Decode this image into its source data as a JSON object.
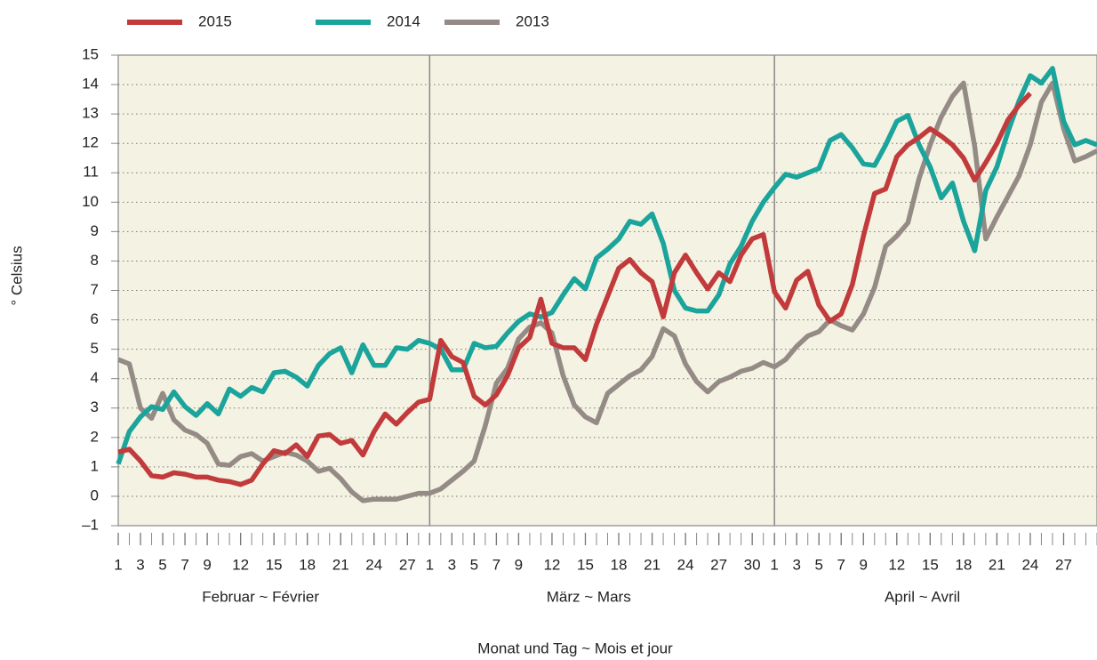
{
  "chart_data": {
    "type": "line",
    "ylabel": "° Celsius",
    "xlabel": "Monat und Tag ~ Mois et jour",
    "months": [
      "Februar ~ Février",
      "März ~ Mars",
      "April ~ Avril"
    ],
    "x": [
      0,
      1,
      2,
      3,
      4,
      5,
      6,
      7,
      8,
      9,
      10,
      11,
      12,
      13,
      14,
      15,
      16,
      17,
      18,
      19,
      20,
      21,
      22,
      23,
      24,
      25,
      26,
      27,
      28,
      29,
      30,
      31,
      32,
      33,
      34,
      35,
      36,
      37,
      38,
      39,
      40,
      41,
      42,
      43,
      44,
      45,
      46,
      47,
      48,
      49,
      50,
      51,
      52,
      53,
      54,
      55,
      56,
      57,
      58,
      59,
      60,
      61,
      62,
      63,
      64,
      65,
      66,
      67,
      68,
      69,
      70,
      71,
      72,
      73,
      74,
      75,
      76,
      77,
      78,
      79,
      80,
      81,
      82,
      83,
      84,
      85,
      86,
      87,
      88
    ],
    "xlim": [
      0,
      88
    ],
    "xticks": [
      {
        "value": 0,
        "label": "1"
      },
      {
        "value": 2,
        "label": "3"
      },
      {
        "value": 4,
        "label": "5"
      },
      {
        "value": 6,
        "label": "7"
      },
      {
        "value": 8,
        "label": "9"
      },
      {
        "value": 11,
        "label": "12"
      },
      {
        "value": 14,
        "label": "15"
      },
      {
        "value": 17,
        "label": "18"
      },
      {
        "value": 20,
        "label": "21"
      },
      {
        "value": 23,
        "label": "24"
      },
      {
        "value": 26,
        "label": "27"
      },
      {
        "value": 28,
        "label": "1"
      },
      {
        "value": 30,
        "label": "3"
      },
      {
        "value": 32,
        "label": "5"
      },
      {
        "value": 34,
        "label": "7"
      },
      {
        "value": 36,
        "label": "9"
      },
      {
        "value": 39,
        "label": "12"
      },
      {
        "value": 42,
        "label": "15"
      },
      {
        "value": 45,
        "label": "18"
      },
      {
        "value": 48,
        "label": "21"
      },
      {
        "value": 51,
        "label": "24"
      },
      {
        "value": 54,
        "label": "27"
      },
      {
        "value": 57,
        "label": "30"
      },
      {
        "value": 59,
        "label": "1"
      },
      {
        "value": 61,
        "label": "3"
      },
      {
        "value": 63,
        "label": "5"
      },
      {
        "value": 65,
        "label": "7"
      },
      {
        "value": 67,
        "label": "9"
      },
      {
        "value": 70,
        "label": "12"
      },
      {
        "value": 73,
        "label": "15"
      },
      {
        "value": 76,
        "label": "18"
      },
      {
        "value": 79,
        "label": "21"
      },
      {
        "value": 82,
        "label": "24"
      },
      {
        "value": 85,
        "label": "27"
      }
    ],
    "ylim": [
      -1,
      15
    ],
    "yticks": [
      {
        "value": -1,
        "label": "–1"
      },
      0,
      1,
      2,
      3,
      4,
      5,
      6,
      7,
      8,
      9,
      10,
      11,
      12,
      13,
      14,
      15
    ],
    "grid": true,
    "legend": "top",
    "series": [
      {
        "name": "2015",
        "color": "#c23b3c",
        "values": [
          1.5,
          1.6,
          1.2,
          0.7,
          0.65,
          0.8,
          0.75,
          0.65,
          0.65,
          0.55,
          0.5,
          0.4,
          0.55,
          1.1,
          1.55,
          1.45,
          1.75,
          1.35,
          2.05,
          2.1,
          1.8,
          1.9,
          1.4,
          2.2,
          2.8,
          2.45,
          2.85,
          3.2,
          3.3,
          5.3,
          4.75,
          4.55,
          3.4,
          3.1,
          3.45,
          4.1,
          5.05,
          5.4,
          6.7,
          5.2,
          5.05,
          5.05,
          4.65,
          5.85,
          6.8,
          7.75,
          8.05,
          7.6,
          7.3,
          6.1,
          7.6,
          8.2,
          7.6,
          7.05,
          7.6,
          7.3,
          8.2,
          8.75,
          8.9,
          6.95,
          6.4,
          7.35,
          7.65,
          6.5,
          5.95,
          6.2,
          7.2,
          8.85,
          10.3,
          10.45,
          11.55,
          11.95,
          12.2,
          12.5,
          12.25,
          11.95,
          11.5,
          10.75,
          11.35,
          12.0,
          12.8,
          13.3,
          13.7,
          null,
          null,
          null,
          null,
          null,
          null
        ]
      },
      {
        "name": "2014",
        "color": "#1ba49b",
        "values": [
          1.1,
          2.2,
          2.7,
          3.05,
          2.95,
          3.55,
          3.05,
          2.75,
          3.15,
          2.8,
          3.65,
          3.4,
          3.7,
          3.55,
          4.2,
          4.25,
          4.05,
          3.75,
          4.45,
          4.85,
          5.05,
          4.2,
          5.15,
          4.45,
          4.45,
          5.05,
          5.0,
          5.3,
          5.2,
          5.0,
          4.3,
          4.3,
          5.2,
          5.05,
          5.1,
          5.55,
          5.95,
          6.2,
          6.1,
          6.25,
          6.85,
          7.4,
          7.05,
          8.1,
          8.4,
          8.75,
          9.35,
          9.25,
          9.6,
          8.6,
          7.0,
          6.4,
          6.3,
          6.3,
          6.85,
          7.9,
          8.5,
          9.35,
          10.0,
          10.5,
          10.95,
          10.85,
          11.0,
          11.15,
          12.1,
          12.3,
          11.85,
          11.3,
          11.25,
          11.95,
          12.75,
          12.95,
          11.95,
          11.2,
          10.15,
          10.65,
          9.35,
          8.35,
          10.4,
          11.2,
          12.4,
          13.45,
          14.3,
          14.05,
          14.55,
          12.75,
          11.95,
          12.1,
          11.95
        ]
      },
      {
        "name": "2013",
        "color": "#958b86",
        "values": [
          4.65,
          4.5,
          3.0,
          2.65,
          3.5,
          2.6,
          2.25,
          2.1,
          1.8,
          1.1,
          1.05,
          1.35,
          1.45,
          1.2,
          1.35,
          1.5,
          1.4,
          1.2,
          0.85,
          0.95,
          0.6,
          0.15,
          -0.15,
          -0.1,
          -0.1,
          -0.1,
          0.0,
          0.1,
          0.1,
          0.25,
          0.55,
          0.85,
          1.2,
          2.4,
          3.85,
          4.35,
          5.35,
          5.75,
          5.9,
          5.55,
          4.1,
          3.1,
          2.7,
          2.5,
          3.5,
          3.8,
          4.1,
          4.3,
          4.75,
          5.7,
          5.45,
          4.5,
          3.9,
          3.55,
          3.9,
          4.05,
          4.25,
          4.35,
          4.55,
          4.4,
          4.65,
          5.1,
          5.45,
          5.6,
          6.0,
          5.8,
          5.65,
          6.2,
          7.1,
          8.5,
          8.85,
          9.3,
          10.8,
          11.95,
          12.9,
          13.6,
          14.05,
          11.9,
          8.75,
          9.5,
          10.2,
          10.9,
          11.95,
          13.4,
          14.05,
          12.5,
          11.4,
          11.55,
          11.75
        ]
      }
    ]
  }
}
